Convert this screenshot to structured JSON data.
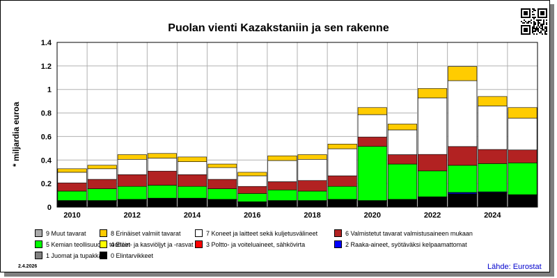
{
  "date_stamp": "2.4.2026",
  "source": "Lähde: Eurostat",
  "chart_data": {
    "type": "bar",
    "stacked": true,
    "title": "Puolan vienti Kazakstaniin ja sen rakenne",
    "ylabel": "* miljardia euroa",
    "xlabel": "",
    "ylim": [
      0,
      1.4
    ],
    "yticks": [
      "0",
      "0.2",
      "0.4",
      "0.6",
      "0.8",
      "1",
      "1.2",
      "1.4"
    ],
    "grid": true,
    "categories": [
      "2010",
      "2011",
      "2012",
      "2013",
      "2014",
      "2015",
      "2016",
      "2017",
      "2018",
      "2019",
      "2020",
      "2021",
      "2022",
      "2023",
      "2024",
      "2025"
    ],
    "xtick_labels": [
      "2010",
      "2012",
      "2014",
      "2016",
      "2018",
      "2020",
      "2022",
      "2024"
    ],
    "series": [
      {
        "name": "0 Elintarvikkeet",
        "color": "#000000",
        "values": [
          0.05,
          0.05,
          0.06,
          0.07,
          0.07,
          0.06,
          0.04,
          0.05,
          0.05,
          0.06,
          0.05,
          0.06,
          0.08,
          0.11,
          0.12,
          0.1
        ]
      },
      {
        "name": "1 Juomat ja tupakka",
        "color": "#808080",
        "values": [
          0.002,
          0.002,
          0.002,
          0.002,
          0.002,
          0.002,
          0.002,
          0.002,
          0.002,
          0.002,
          0.002,
          0.002,
          0.003,
          0.003,
          0.003,
          0.002
        ]
      },
      {
        "name": "2 Raaka-aineet, syötäväksi kelpaamattomat",
        "color": "#0000ff",
        "values": [
          0.002,
          0.002,
          0.002,
          0.002,
          0.002,
          0.002,
          0.002,
          0.002,
          0.002,
          0.002,
          0.002,
          0.002,
          0.003,
          0.01,
          0.005,
          0.002
        ]
      },
      {
        "name": "3 Poltto- ja voiteluaineet, sähkövirta",
        "color": "#ff0000",
        "values": [
          0.001,
          0.001,
          0.001,
          0.001,
          0.001,
          0.001,
          0.001,
          0.001,
          0.001,
          0.001,
          0.001,
          0.001,
          0.001,
          0.001,
          0.001,
          0.001
        ]
      },
      {
        "name": "4 Eläin- ja kasviöljyt ja -rasvat",
        "color": "#ffff00",
        "values": [
          0.001,
          0.001,
          0.001,
          0.001,
          0.001,
          0.001,
          0.001,
          0.001,
          0.001,
          0.001,
          0.001,
          0.001,
          0.001,
          0.001,
          0.001,
          0.001
        ]
      },
      {
        "name": "5 Kemian teollisuuden tuotteet",
        "color": "#00ff00",
        "values": [
          0.08,
          0.1,
          0.11,
          0.11,
          0.1,
          0.09,
          0.07,
          0.09,
          0.08,
          0.11,
          0.46,
          0.3,
          0.22,
          0.23,
          0.24,
          0.27
        ]
      },
      {
        "name": "6 Valmistetut tavarat valmistusaineen mukaan",
        "color": "#b22222",
        "values": [
          0.07,
          0.08,
          0.1,
          0.12,
          0.1,
          0.08,
          0.06,
          0.07,
          0.09,
          0.09,
          0.08,
          0.08,
          0.14,
          0.16,
          0.12,
          0.11
        ]
      },
      {
        "name": "7 Koneet ja laitteet sekä kuljetusvälineet",
        "color": "#ffffff",
        "values": [
          0.09,
          0.09,
          0.13,
          0.11,
          0.11,
          0.1,
          0.09,
          0.18,
          0.18,
          0.23,
          0.19,
          0.21,
          0.48,
          0.56,
          0.37,
          0.27
        ]
      },
      {
        "name": "8 Erinäiset valmiit tavarat",
        "color": "#ffcc00",
        "values": [
          0.03,
          0.03,
          0.04,
          0.04,
          0.04,
          0.03,
          0.03,
          0.04,
          0.04,
          0.04,
          0.06,
          0.05,
          0.08,
          0.12,
          0.08,
          0.09
        ]
      },
      {
        "name": "9 Muut tavarat",
        "color": "#aaaaaa",
        "values": [
          0,
          0,
          0,
          0,
          0,
          0,
          0,
          0,
          0,
          0,
          0,
          0,
          0,
          0,
          0,
          0
        ]
      }
    ],
    "legend_order": [
      "9 Muut tavarat",
      "8 Erinäiset valmiit tavarat",
      "7 Koneet ja laitteet sekä kuljetusvälineet",
      "6 Valmistetut tavarat valmistusaineen mukaan",
      "5 Kemian teollisuuden tuotteet",
      "4 Eläin- ja kasviöljyt ja -rasvat",
      "3 Poltto- ja voiteluaineet, sähkövirta",
      "2 Raaka-aineet, syötäväksi kelpaamattomat",
      "1 Juomat ja tupakka",
      "0 Elintarvikkeet"
    ],
    "legend_placement": "bottom"
  },
  "icons": {
    "qr": "qr-code-icon"
  }
}
